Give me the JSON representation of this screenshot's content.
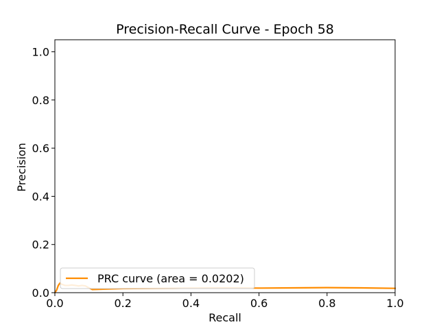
{
  "chart_data": {
    "type": "line",
    "title": "Precision-Recall Curve - Epoch 58",
    "xlabel": "Recall",
    "ylabel": "Precision",
    "xlim": [
      0.0,
      1.0
    ],
    "ylim": [
      0.0,
      1.05
    ],
    "xticks": [
      0.0,
      0.2,
      0.4,
      0.6,
      0.8,
      1.0
    ],
    "xtick_labels": [
      "0.0",
      "0.2",
      "0.4",
      "0.6",
      "0.8",
      "1.0"
    ],
    "yticks": [
      0.0,
      0.2,
      0.4,
      0.6,
      0.8,
      1.0
    ],
    "ytick_labels": [
      "0.0",
      "0.2",
      "0.4",
      "0.6",
      "0.8",
      "1.0"
    ],
    "grid": false,
    "legend_position": "lower-left",
    "series": [
      {
        "name": "PRC curve (area = 0.0202)",
        "color": "#ff8c00",
        "x": [
          0.0,
          0.005,
          0.01,
          0.015,
          0.02,
          0.03,
          0.04,
          0.05,
          0.06,
          0.07,
          0.08,
          0.09,
          0.1,
          0.11,
          0.15,
          0.2,
          0.3,
          0.4,
          0.5,
          0.6,
          0.7,
          0.8,
          0.9,
          1.0
        ],
        "y": [
          0.0,
          0.01,
          0.03,
          0.04,
          0.035,
          0.03,
          0.03,
          0.032,
          0.03,
          0.028,
          0.03,
          0.028,
          0.02,
          0.013,
          0.015,
          0.017,
          0.018,
          0.019,
          0.02,
          0.019,
          0.02,
          0.021,
          0.02,
          0.018
        ]
      }
    ]
  }
}
